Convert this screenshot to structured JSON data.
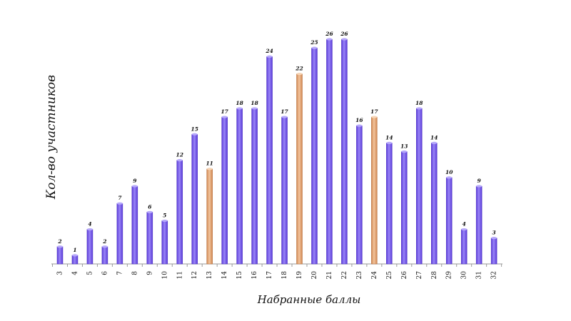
{
  "colors": {
    "default_bar": "#7455ea",
    "highlight_bar": "#e4a56f",
    "axis": "#9a9a9a",
    "text": "#111111"
  },
  "chart_data": {
    "type": "bar",
    "title": "",
    "xlabel": "Набранные баллы",
    "ylabel": "Кол-во участников",
    "categories": [
      "3",
      "4",
      "5",
      "6",
      "7",
      "8",
      "9",
      "10",
      "11",
      "12",
      "13",
      "14",
      "15",
      "16",
      "17",
      "18",
      "19",
      "20",
      "21",
      "22",
      "23",
      "24",
      "25",
      "26",
      "27",
      "28",
      "29",
      "30",
      "31",
      "32"
    ],
    "values": [
      2,
      1,
      4,
      2,
      7,
      9,
      6,
      5,
      12,
      15,
      11,
      17,
      18,
      18,
      24,
      17,
      22,
      25,
      26,
      26,
      16,
      17,
      14,
      13,
      18,
      14,
      10,
      4,
      9,
      3
    ],
    "highlighted_categories": [
      "13",
      "19",
      "24"
    ],
    "ylim": [
      0,
      26
    ],
    "grid": false,
    "legend": "none",
    "data_labels": true,
    "x_tick_label_rotation": "vertical"
  }
}
